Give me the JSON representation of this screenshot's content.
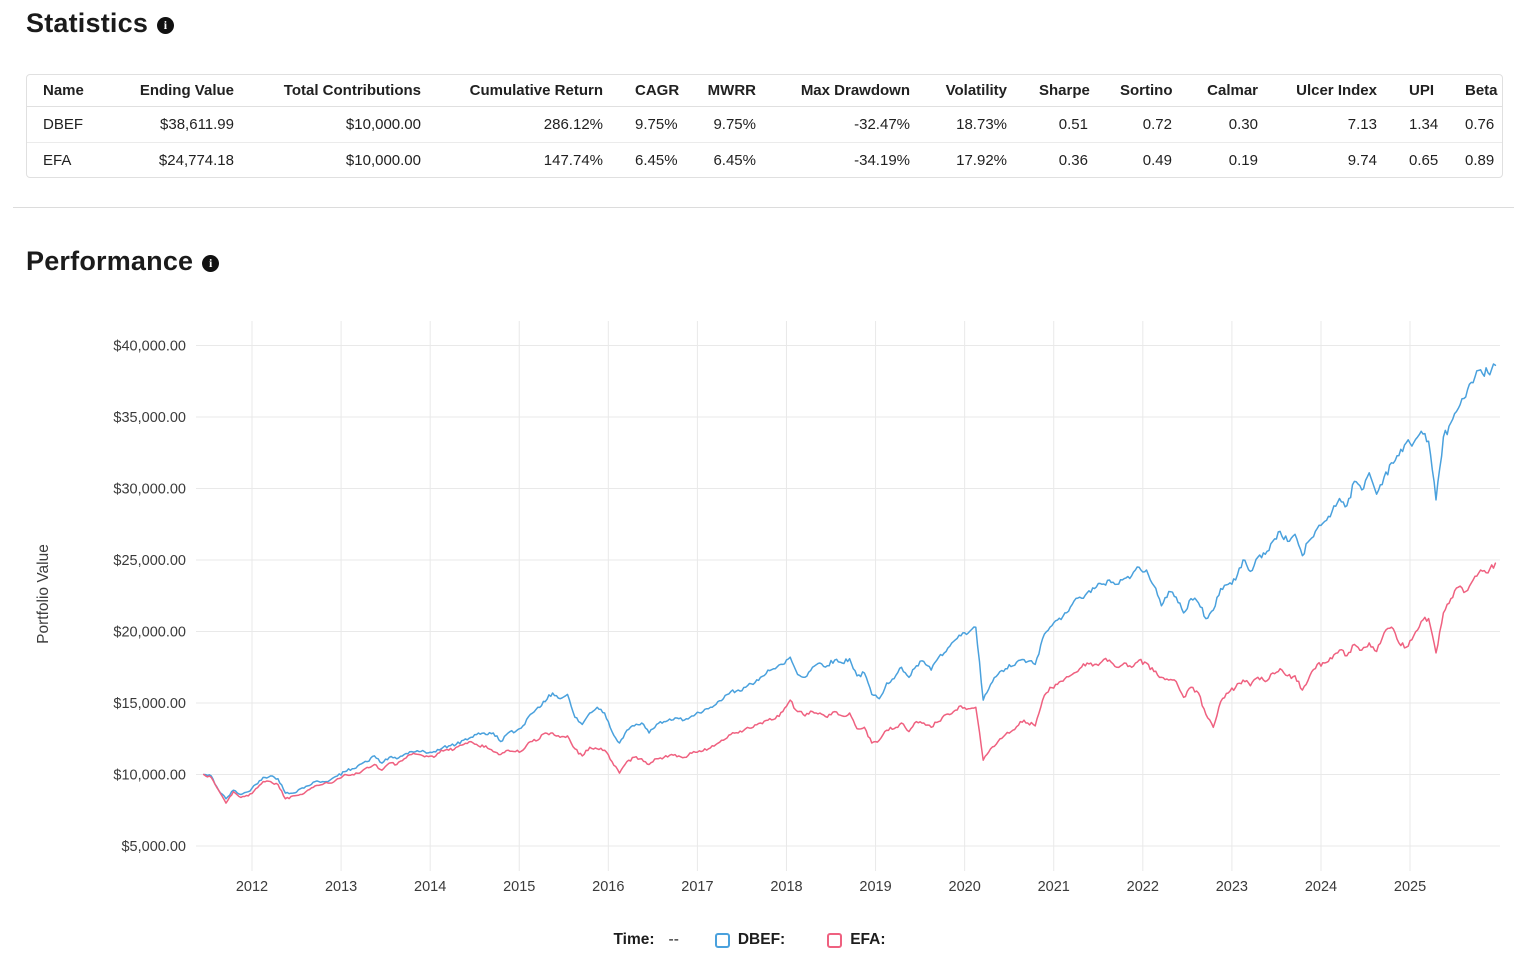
{
  "statistics": {
    "title": "Statistics",
    "table": {
      "columns": [
        "Name",
        "Ending Value",
        "Total Contributions",
        "Cumulative Return",
        "CAGR",
        "MWRR",
        "Max Drawdown",
        "Volatility",
        "Sharpe",
        "Sortino",
        "Calmar",
        "Ulcer Index",
        "UPI",
        "Beta"
      ],
      "rows": [
        [
          "DBEF",
          "$38,611.99",
          "$10,000.00",
          "286.12%",
          "9.75%",
          "9.75%",
          "-32.47%",
          "18.73%",
          "0.51",
          "0.72",
          "0.30",
          "7.13",
          "1.34",
          "0.76"
        ],
        [
          "EFA",
          "$24,774.18",
          "$10,000.00",
          "147.74%",
          "6.45%",
          "6.45%",
          "-34.19%",
          "17.92%",
          "0.36",
          "0.49",
          "0.19",
          "9.74",
          "0.65",
          "0.89"
        ]
      ]
    }
  },
  "performance": {
    "title": "Performance",
    "legend": {
      "time_label": "Time:",
      "time_value": "--",
      "items": [
        {
          "label": "DBEF:",
          "color": "#4aa1dd"
        },
        {
          "label": "EFA:",
          "color": "#ef6180"
        }
      ]
    }
  },
  "chart_data": {
    "type": "line",
    "title": "",
    "xlabel": "",
    "ylabel": "Portfolio Value",
    "grid": true,
    "legend_position": "bottom",
    "xlim": [
      2011.42,
      2026.01
    ],
    "ylim": [
      3460,
      41710
    ],
    "x_ticks": [
      {
        "value": 2012,
        "label": "2012"
      },
      {
        "value": 2013,
        "label": "2013"
      },
      {
        "value": 2014,
        "label": "2014"
      },
      {
        "value": 2015,
        "label": "2015"
      },
      {
        "value": 2016,
        "label": "2016"
      },
      {
        "value": 2017,
        "label": "2017"
      },
      {
        "value": 2018,
        "label": "2018"
      },
      {
        "value": 2019,
        "label": "2019"
      },
      {
        "value": 2020,
        "label": "2020"
      },
      {
        "value": 2021,
        "label": "2021"
      },
      {
        "value": 2022,
        "label": "2022"
      },
      {
        "value": 2023,
        "label": "2023"
      },
      {
        "value": 2024,
        "label": "2024"
      },
      {
        "value": 2025,
        "label": "2025"
      }
    ],
    "y_ticks": [
      {
        "value": 40000,
        "label": "$40,000.00"
      },
      {
        "value": 35000,
        "label": "$35,000.00"
      },
      {
        "value": 30000,
        "label": "$30,000.00"
      },
      {
        "value": 25000,
        "label": "$25,000.00"
      },
      {
        "value": 20000,
        "label": "$20,000.00"
      },
      {
        "value": 15000,
        "label": "$15,000.00"
      },
      {
        "value": 10000,
        "label": "$10,000.00"
      },
      {
        "value": 5000,
        "label": "$5,000.00"
      }
    ],
    "series": [
      {
        "name": "DBEF",
        "color": "#4aa1dd",
        "seed": 42,
        "start_year": 2011.4583,
        "step_years": 0.0833333,
        "values": [
          10000,
          9900,
          8900,
          8300,
          8900,
          8600,
          8800,
          9300,
          9800,
          9900,
          9700,
          8700,
          8700,
          9000,
          9200,
          9500,
          9500,
          9600,
          9900,
          10200,
          10400,
          10700,
          10900,
          11300,
          10800,
          11200,
          11100,
          11400,
          11600,
          11600,
          11500,
          11600,
          11800,
          12000,
          12100,
          12400,
          12600,
          12900,
          12800,
          12900,
          12300,
          12900,
          13000,
          13400,
          14200,
          14700,
          15100,
          15700,
          15300,
          15600,
          14000,
          13500,
          14300,
          14700,
          14300,
          13000,
          12200,
          13100,
          13400,
          13600,
          12900,
          13500,
          13700,
          13800,
          13900,
          13900,
          14100,
          14300,
          14600,
          14900,
          15300,
          15800,
          15900,
          16100,
          16300,
          16800,
          17300,
          17400,
          17700,
          18200,
          17000,
          16800,
          17500,
          17800,
          17600,
          18000,
          17800,
          18100,
          16900,
          17100,
          15600,
          15300,
          16400,
          16700,
          17500,
          16800,
          17600,
          17900,
          17300,
          18200,
          18600,
          19300,
          19700,
          19900,
          20300,
          15200,
          16300,
          17000,
          17400,
          17600,
          18000,
          17900,
          17700,
          19500,
          20300,
          20800,
          21300,
          21900,
          22400,
          22700,
          23000,
          23300,
          23600,
          23300,
          23700,
          23900,
          24500,
          24300,
          23200,
          21800,
          22800,
          22400,
          21300,
          22300,
          22000,
          20900,
          21500,
          23000,
          23300,
          23600,
          25000,
          24200,
          25200,
          25400,
          26300,
          27000,
          26300,
          26800,
          25300,
          26400,
          27200,
          27700,
          28400,
          29300,
          28800,
          30500,
          29900,
          31100,
          29600,
          30800,
          31800,
          32300,
          33200,
          33200,
          34000,
          33300,
          29200,
          33600,
          34600,
          35600,
          36400,
          37400,
          38300,
          38100,
          38612
        ]
      },
      {
        "name": "EFA",
        "color": "#ef6180",
        "seed": 1337,
        "start_year": 2011.4583,
        "step_years": 0.0833333,
        "values": [
          10000,
          9800,
          8900,
          8000,
          8800,
          8400,
          8500,
          9000,
          9500,
          9500,
          9300,
          8300,
          8500,
          8600,
          8900,
          9200,
          9300,
          9400,
          9700,
          10000,
          10000,
          10100,
          10500,
          10700,
          10300,
          10800,
          10700,
          11100,
          11400,
          11400,
          11300,
          11200,
          11700,
          11700,
          11900,
          12100,
          12300,
          12000,
          12000,
          11600,
          11400,
          11700,
          11600,
          11700,
          12300,
          12400,
          12900,
          12900,
          12600,
          12700,
          11800,
          11300,
          11900,
          11800,
          11700,
          10900,
          10100,
          10900,
          11200,
          11100,
          10700,
          11100,
          11200,
          11400,
          11300,
          11200,
          11600,
          11600,
          11800,
          12100,
          12400,
          12800,
          12900,
          13200,
          13300,
          13600,
          13800,
          13900,
          14400,
          15200,
          14400,
          14100,
          14400,
          14300,
          14000,
          14400,
          14100,
          14300,
          13200,
          13300,
          12200,
          12400,
          13100,
          13200,
          13600,
          13000,
          13700,
          13600,
          13300,
          13700,
          14200,
          14400,
          14800,
          14600,
          14700,
          11000,
          11800,
          12300,
          12800,
          13100,
          13700,
          13600,
          13400,
          15200,
          16100,
          16300,
          16700,
          17000,
          17400,
          17800,
          17700,
          17900,
          18000,
          17500,
          17800,
          17500,
          18000,
          17800,
          17200,
          16800,
          16600,
          16500,
          15400,
          16100,
          15700,
          14200,
          13300,
          15100,
          15700,
          16100,
          16600,
          16200,
          16800,
          16500,
          17100,
          17400,
          16900,
          16900,
          15900,
          16900,
          17700,
          17800,
          18100,
          18700,
          18300,
          19100,
          18700,
          19200,
          18600,
          19900,
          20300,
          19200,
          18900,
          19700,
          20700,
          20900,
          18500,
          21300,
          22300,
          23100,
          22800,
          23600,
          24300,
          24100,
          24774
        ]
      }
    ]
  }
}
